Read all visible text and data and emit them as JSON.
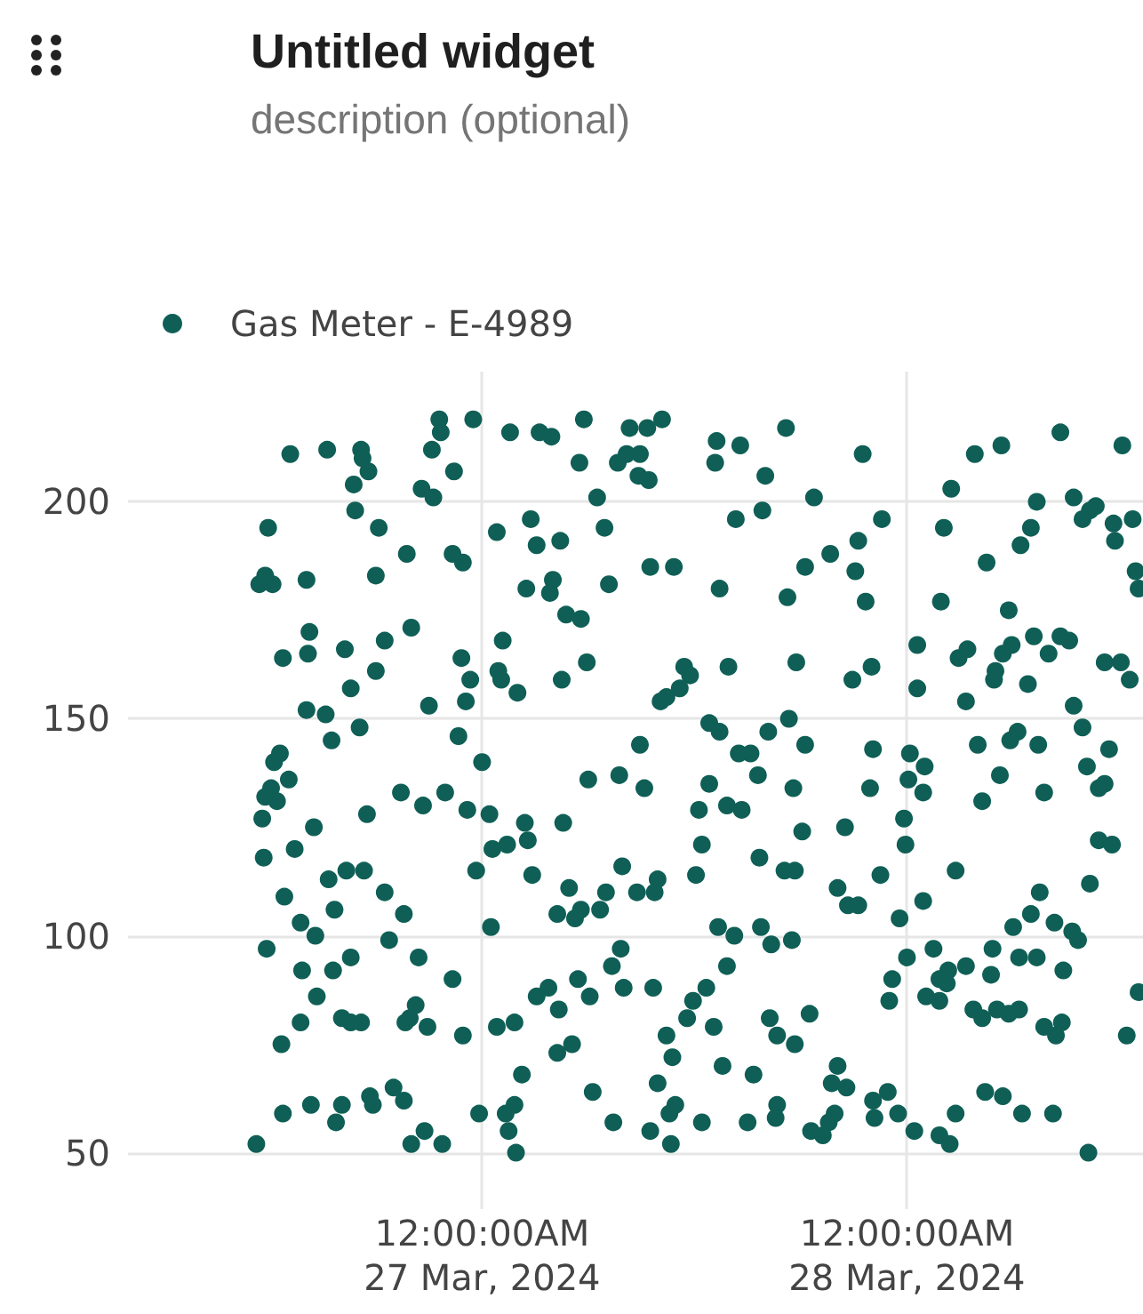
{
  "chart_data": {
    "type": "scatter",
    "title": "Untitled widget",
    "subtitle": "description (optional)",
    "x": [
      "2024-03-26T13:10",
      "2024-03-26T15:15",
      "2024-03-26T17:10",
      "2024-03-26T17:15",
      "2024-03-26T17:35",
      "2024-03-26T16:45",
      "2024-03-26T16:50",
      "2024-03-26T18:10",
      "2024-03-26T11:55",
      "2024-03-26T21:35",
      "2024-03-26T21:40",
      "2024-03-26T21:10",
      "2024-03-26T23:30",
      "2024-03-26T22:25",
      "2024-03-26T20:35",
      "2024-03-26T21:15",
      "2024-03-27T01:35",
      "2024-03-27T03:15",
      "2024-03-27T03:55",
      "2024-03-27T02:45",
      "2024-03-27T00:50",
      "2024-03-27T03:05",
      "2024-03-27T04:25",
      "2024-03-26T19:45",
      "2024-03-26T22:20",
      "2024-03-26T22:55",
      "2024-03-26T11:45",
      "2024-03-26T11:25",
      "2024-03-26T12:10",
      "2024-03-26T14:05",
      "2024-03-26T18:00",
      "2024-03-27T02:30",
      "2024-03-27T04:00",
      "2024-03-27T03:50",
      "2024-03-27T04:45",
      "2024-03-26T14:15",
      "2024-03-26T12:45",
      "2024-03-26T14:10",
      "2024-03-26T16:15",
      "2024-03-26T18:30",
      "2024-03-26T20:00",
      "2024-03-27T01:10",
      "2024-03-26T22:50",
      "2024-03-26T18:00",
      "2024-03-26T23:20",
      "2024-03-27T00:55",
      "2024-03-27T01:05",
      "2024-03-27T04:30",
      "2024-03-26T16:35",
      "2024-03-27T02:00",
      "2024-03-26T14:05",
      "2024-03-26T15:10",
      "2024-03-26T17:05",
      "2024-03-26T21:00",
      "2024-03-26T23:05",
      "2024-03-26T15:30",
      "2024-03-26T22:40",
      "2024-03-26T12:35",
      "2024-03-26T12:15",
      "2024-03-27T00:00",
      "2024-03-26T13:05",
      "2024-03-27T05:45",
      "2024-03-27T08:20",
      "2024-03-27T09:20",
      "2024-03-27T10:10",
      "2024-03-27T05:30",
      "2024-03-27T07:40",
      "2024-03-27T08:10",
      "2024-03-27T08:55",
      "2024-03-27T08:50",
      "2024-03-27T09:25",
      "2024-03-27T13:15",
      "2024-03-27T14:35",
      "2024-03-27T13:10",
      "2024-03-27T17:10",
      "2024-03-27T16:00",
      "2024-03-27T21:30",
      "2024-03-27T06:30",
      "2024-03-27T18:45",
      "2024-03-27T15:50",
      "2024-03-27T14:20",
      "2024-03-27T06:55",
      "2024-03-27T22:35",
      "2024-03-27T21:15",
      "2024-03-27T19:40",
      "2024-03-27T18:15",
      "2024-03-27T21:05",
      "2024-03-27T09:30",
      "2024-03-27T10:50",
      "2024-03-27T07:10",
      "2024-03-27T13:25",
      "2024-03-27T17:15",
      "2024-03-27T21:40",
      "2024-03-27T05:35",
      "2024-03-27T05:55",
      "2024-03-27T11:25",
      "2024-03-27T11:45",
      "2024-03-27T11:10",
      "2024-03-27T10:25",
      "2024-03-27T10:05",
      "2024-03-27T13:55",
      "2024-03-27T17:45",
      "2024-03-27T20:55",
      "2024-03-27T22:00",
      "2024-03-27T12:50",
      "2024-03-27T13:25",
      "2024-03-27T08:55",
      "2024-03-27T16:10",
      "2024-03-27T17:20",
      "2024-03-27T18:15",
      "2024-03-27T22:05",
      "2024-03-27T14:30",
      "2024-03-27T15:10",
      "2024-03-28T03:50",
      "2024-03-28T05:20",
      "2024-03-28T08:40",
      "2024-03-28T12:10",
      "2024-03-28T02:30",
      "2024-03-28T02:05",
      "2024-03-28T07:20",
      "2024-03-28T07:00",
      "2024-03-28T06:25",
      "2024-03-28T09:25",
      "2024-03-28T10:40",
      "2024-03-28T09:55",
      "2024-03-28T10:20",
      "2024-03-28T11:40",
      "2024-03-28T11:45",
      "2024-03-28T12:45",
      "2024-03-28T04:30",
      "2024-03-28T12:55",
      "2024-03-28T13:05",
      "2024-03-28T01:55",
      "2024-03-28T05:45",
      "2024-03-28T00:35",
      "2024-03-28T02:55",
      "2024-03-28T03:25",
      "2024-03-28T05:25",
      "2024-03-28T05:55",
      "2024-03-28T07:10",
      "2024-03-28T08:00",
      "2024-03-28T08:40",
      "2024-03-28T09:10",
      "2024-03-28T11:10",
      "2024-03-28T12:05",
      "2024-03-28T12:35",
      "2024-03-28T00:35",
      "2024-03-28T05:00",
      "2024-03-28T04:55",
      "2024-03-28T06:50",
      "2024-03-28T03:20",
      "2024-03-28T09:25",
      "2024-03-28T09:55",
      "2024-03-28T00:10",
      "2024-03-28T01:00",
      "2024-03-28T04:00",
      "2024-03-28T05:50",
      "2024-03-28T06:15",
      "2024-03-28T07:25",
      "2024-03-28T10:10",
      "2024-03-28T11:25",
      "2024-03-28T05:15",
      "2024-03-26T12:05",
      "2024-03-26T11:45",
      "2024-03-26T12:25",
      "2024-03-26T11:35",
      "2024-03-26T14:30",
      "2024-03-26T13:25",
      "2024-03-26T11:40",
      "2024-03-26T17:30",
      "2024-03-26T19:25",
      "2024-03-26T20:40",
      "2024-03-26T21:55",
      "2024-03-26T23:10",
      "2024-03-27T00:25",
      "2024-03-27T02:25",
      "2024-03-27T02:35",
      "2024-03-27T00:35",
      "2024-03-27T01:25",
      "2024-03-27T04:35",
      "2024-03-26T23:40",
      "2024-03-27T02:50",
      "2024-03-27T04:55",
      "2024-03-26T15:20",
      "2024-03-26T16:20",
      "2024-03-26T17:20",
      "2024-03-26T18:30",
      "2024-03-26T12:50",
      "2024-03-26T15:40",
      "2024-03-26T19:35",
      "2024-03-27T04:15",
      "2024-03-26T13:45",
      "2024-03-26T14:35",
      "2024-03-27T00:30",
      "2024-03-26T18:45",
      "2024-03-26T11:50",
      "2024-03-26T16:35",
      "2024-03-26T20:25",
      "2024-03-26T13:50",
      "2024-03-26T15:35",
      "2024-03-26T22:20",
      "2024-03-26T14:40",
      "2024-03-26T16:05",
      "2024-03-26T16:35",
      "2024-03-26T17:10",
      "2024-03-26T13:45",
      "2024-03-26T20:15",
      "2024-03-26T19:55",
      "2024-03-26T19:40",
      "2024-03-26T20:55",
      "2024-03-26T22:55",
      "2024-03-27T00:50",
      "2024-03-27T01:50",
      "2024-03-27T03:05",
      "2024-03-27T03:45",
      "2024-03-27T04:20",
      "2024-03-27T04:15",
      "2024-03-26T12:40",
      "2024-03-27T02:15",
      "2024-03-26T12:45",
      "2024-03-26T14:20",
      "2024-03-26T16:05",
      "2024-03-26T15:45",
      "2024-03-26T17:40",
      "2024-03-26T17:50",
      "2024-03-26T19:00",
      "2024-03-26T19:35",
      "2024-03-26T23:50",
      "2024-03-27T01:50",
      "2024-03-27T01:20",
      "2024-03-27T01:30",
      "2024-03-27T01:55",
      "2024-03-26T11:15",
      "2024-03-26T20:45",
      "2024-03-26T20:00",
      "2024-03-26T21:45",
      "2024-03-27T06:00",
      "2024-03-27T07:45",
      "2024-03-27T09:10",
      "2024-03-27T12:50",
      "2024-03-27T15:35",
      "2024-03-27T17:35",
      "2024-03-27T21:55",
      "2024-03-27T12:15",
      "2024-03-27T13:50",
      "2024-03-27T14:40",
      "2024-03-27T18:05",
      "2024-03-27T20:30",
      "2024-03-27T12:25",
      "2024-03-27T15:40",
      "2024-03-27T07:55",
      "2024-03-27T12:05",
      "2024-03-27T17:05",
      "2024-03-27T17:40",
      "2024-03-27T22:30",
      "2024-03-27T07:00",
      "2024-03-27T08:45",
      "2024-03-27T09:45",
      "2024-03-27T09:55",
      "2024-03-27T20:05",
      "2024-03-27T20:40",
      "2024-03-27T21:15",
      "2024-03-27T05:15",
      "2024-03-27T05:35",
      "2024-03-27T06:40",
      "2024-03-27T13:20",
      "2024-03-27T14:15",
      "2024-03-27T15:45",
      "2024-03-27T16:20",
      "2024-03-27T17:30",
      "2024-03-27T07:50",
      "2024-03-27T07:20",
      "2024-03-27T13:50",
      "2024-03-27T05:25",
      "2024-03-27T06:05",
      "2024-03-27T08:00",
      "2024-03-27T09:40",
      "2024-03-27T12:40",
      "2024-03-27T11:55",
      "2024-03-27T11:35",
      "2024-03-27T13:05",
      "2024-03-27T10:25",
      "2024-03-27T16:15",
      "2024-03-27T16:40",
      "2024-03-27T17:40",
      "2024-03-27T18:30",
      "2024-03-27T05:05",
      "2024-03-27T10:45",
      "2024-03-27T13:35",
      "2024-03-27T15:20",
      "2024-03-27T20:05",
      "2024-03-27T09:55",
      "2024-03-27T19:45",
      "2024-03-27T20:35",
      "2024-03-27T06:15",
      "2024-03-27T22:05",
      "2024-03-27T10:35",
      "2024-03-27T10:55",
      "2024-03-27T16:40",
      "2024-03-27T16:35",
      "2024-03-27T19:55",
      "2024-03-27T19:35",
      "2024-03-27T22:10",
      "2024-03-27T07:25",
      "2024-03-27T09:30",
      "2024-03-27T12:25",
      "2024-03-27T15:00",
      "2024-03-27T18:35",
      "2024-03-27T19:15",
      "2024-03-27T10:40",
      "2024-03-28T00:05",
      "2024-03-28T00:55",
      "2024-03-28T04:15",
      "2024-03-28T07:45",
      "2024-03-28T11:10",
      "2024-03-28T10:50",
      "2024-03-27T23:50",
      "2024-03-27T23:55",
      "2024-03-28T02:45",
      "2024-03-28T10:50",
      "2024-03-28T11:35",
      "2024-03-28T10:20",
      "2024-03-28T00:55",
      "2024-03-27T23:35",
      "2024-03-28T07:30",
      "2024-03-28T07:00",
      "2024-03-28T06:00",
      "2024-03-28T08:20",
      "2024-03-28T09:20",
      "2024-03-28T09:40",
      "2024-03-28T01:30",
      "2024-03-28T04:50",
      "2024-03-28T06:20",
      "2024-03-28T07:20",
      "2024-03-28T00:00",
      "2024-03-27T23:10",
      "2024-03-27T23:00",
      "2024-03-28T02:20",
      "2024-03-28T01:50",
      "2024-03-28T02:15",
      "2024-03-28T03:20",
      "2024-03-28T04:45",
      "2024-03-28T08:50",
      "2024-03-28T01:05",
      "2024-03-28T01:50",
      "2024-03-28T03:45",
      "2024-03-28T04:15",
      "2024-03-28T05:05",
      "2024-03-28T05:45",
      "2024-03-28T06:20",
      "2024-03-28T07:45",
      "2024-03-28T08:25",
      "2024-03-28T08:45",
      "2024-03-28T12:25",
      "2024-03-28T13:05",
      "2024-03-27T22:55",
      "2024-03-27T23:30",
      "2024-03-28T00:25",
      "2024-03-28T01:50",
      "2024-03-28T02:25",
      "2024-03-28T02:45",
      "2024-03-28T04:25",
      "2024-03-28T05:25",
      "2024-03-28T06:30",
      "2024-03-28T08:15",
      "2024-03-28T10:15"
    ],
    "series": [
      {
        "name": "Gas Meter - E-4989",
        "color": "#0f5f56",
        "values": [
          211,
          212,
          212,
          210,
          207,
          204,
          198,
          194,
          194,
          219,
          216,
          212,
          219,
          207,
          203,
          201,
          216,
          216,
          215,
          196,
          193,
          190,
          191,
          188,
          188,
          186,
          183,
          181,
          181,
          182,
          183,
          180,
          182,
          179,
          174,
          170,
          164,
          165,
          166,
          168,
          171,
          168,
          164,
          161,
          159,
          161,
          159,
          159,
          157,
          156,
          152,
          151,
          148,
          153,
          154,
          145,
          146,
          142,
          140,
          140,
          136,
          219,
          217,
          217,
          219,
          209,
          209,
          211,
          211,
          206,
          205,
          214,
          213,
          209,
          217,
          206,
          211,
          201,
          201,
          198,
          196,
          194,
          196,
          191,
          188,
          185,
          184,
          185,
          185,
          181,
          180,
          178,
          177,
          173,
          163,
          162,
          160,
          157,
          155,
          154,
          162,
          163,
          159,
          162,
          149,
          147,
          144,
          147,
          150,
          144,
          143,
          142,
          142,
          211,
          213,
          216,
          213,
          203,
          194,
          200,
          194,
          190,
          201,
          199,
          196,
          198,
          195,
          191,
          196,
          186,
          184,
          180,
          177,
          175,
          167,
          164,
          166,
          165,
          167,
          169,
          165,
          169,
          168,
          163,
          163,
          159,
          157,
          161,
          159,
          158,
          154,
          153,
          148,
          142,
          139,
          144,
          145,
          147,
          144,
          139,
          143,
          137,
          134,
          132,
          131,
          127,
          125,
          120,
          118,
          128,
          133,
          130,
          133,
          129,
          128,
          126,
          122,
          120,
          121,
          126,
          115,
          114,
          111,
          113,
          115,
          115,
          110,
          109,
          106,
          105,
          105,
          103,
          100,
          102,
          99,
          97,
          95,
          95,
          92,
          92,
          90,
          86,
          81,
          80,
          80,
          80,
          84,
          81,
          80,
          79,
          77,
          79,
          80,
          86,
          88,
          83,
          73,
          75,
          68,
          59,
          61,
          61,
          57,
          63,
          61,
          65,
          62,
          59,
          61,
          59,
          55,
          50,
          52,
          55,
          52,
          52,
          136,
          137,
          134,
          135,
          137,
          134,
          134,
          129,
          130,
          129,
          124,
          125,
          121,
          118,
          116,
          114,
          115,
          115,
          114,
          110,
          110,
          110,
          113,
          111,
          107,
          107,
          104,
          106,
          106,
          102,
          100,
          102,
          98,
          99,
          97,
          93,
          93,
          90,
          86,
          88,
          88,
          88,
          85,
          81,
          79,
          77,
          81,
          77,
          75,
          82,
          75,
          72,
          70,
          68,
          70,
          66,
          66,
          65,
          64,
          62,
          59,
          61,
          61,
          58,
          59,
          57,
          58,
          57,
          55,
          57,
          57,
          55,
          54,
          52,
          136,
          133,
          131,
          133,
          135,
          134,
          127,
          121,
          115,
          122,
          121,
          112,
          108,
          104,
          110,
          105,
          102,
          103,
          101,
          99,
          97,
          97,
          95,
          95,
          95,
          90,
          85,
          92,
          90,
          89,
          93,
          91,
          92,
          86,
          85,
          83,
          81,
          83,
          82,
          83,
          79,
          77,
          80,
          77,
          87,
          64,
          59,
          55,
          54,
          52,
          59,
          64,
          63,
          59,
          59,
          50
        ]
      }
    ],
    "xlim": [
      "2024-03-26T04:00",
      "2024-03-28T13:20"
    ],
    "xticks": [
      {
        "value": "2024-03-27",
        "label": "12:00:00AM\n27 Mar, 2024"
      },
      {
        "value": "2024-03-28",
        "label": "12:00:00AM\n28 Mar, 2024"
      }
    ],
    "ylim": [
      37,
      230
    ],
    "yticks": [
      50,
      100,
      150,
      200
    ],
    "grid": true,
    "legend": "top left",
    "marker": "circle"
  }
}
